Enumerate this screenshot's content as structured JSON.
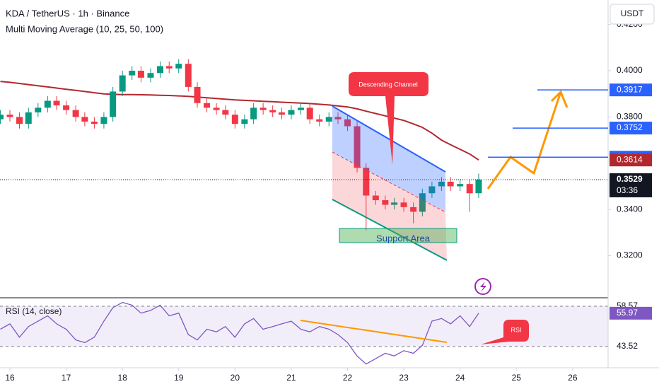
{
  "chart_data": {
    "type": "candlestick",
    "title": "KDA / TetherUS · 1h · Binance",
    "subtitle": "Multi Moving Average (10, 25, 50, 100)",
    "currency": "USDT",
    "x": [
      15.83,
      16.0,
      16.17,
      16.33,
      16.5,
      16.67,
      16.83,
      17.0,
      17.17,
      17.33,
      17.5,
      17.67,
      17.83,
      18.0,
      18.17,
      18.33,
      18.5,
      18.67,
      18.83,
      19.0,
      19.17,
      19.33,
      19.5,
      19.67,
      19.83,
      20.0,
      20.17,
      20.33,
      20.5,
      20.67,
      20.83,
      21.0,
      21.17,
      21.33,
      21.5,
      21.67,
      21.83,
      22.0,
      22.17,
      22.33,
      22.5,
      22.67,
      22.83,
      23.0,
      23.17,
      23.33,
      23.5,
      23.67,
      23.83,
      24.0,
      24.17,
      24.33
    ],
    "open": [
      0.379,
      0.381,
      0.38,
      0.377,
      0.382,
      0.384,
      0.387,
      0.385,
      0.383,
      0.38,
      0.378,
      0.377,
      0.38,
      0.391,
      0.398,
      0.4,
      0.397,
      0.399,
      0.402,
      0.401,
      0.403,
      0.393,
      0.386,
      0.384,
      0.383,
      0.381,
      0.377,
      0.379,
      0.384,
      0.383,
      0.382,
      0.381,
      0.383,
      0.384,
      0.379,
      0.378,
      0.38,
      0.379,
      0.376,
      0.358,
      0.346,
      0.344,
      0.342,
      0.343,
      0.341,
      0.339,
      0.347,
      0.35,
      0.352,
      0.35,
      0.351,
      0.347
    ],
    "high": [
      0.383,
      0.383,
      0.382,
      0.384,
      0.386,
      0.389,
      0.389,
      0.387,
      0.385,
      0.382,
      0.38,
      0.382,
      0.393,
      0.4,
      0.402,
      0.402,
      0.401,
      0.404,
      0.404,
      0.405,
      0.405,
      0.395,
      0.388,
      0.386,
      0.385,
      0.383,
      0.381,
      0.386,
      0.386,
      0.385,
      0.384,
      0.385,
      0.386,
      0.386,
      0.381,
      0.382,
      0.382,
      0.381,
      0.378,
      0.36,
      0.348,
      0.346,
      0.345,
      0.345,
      0.343,
      0.349,
      0.352,
      0.354,
      0.354,
      0.353,
      0.353,
      0.3555
    ],
    "low": [
      0.377,
      0.378,
      0.375,
      0.375,
      0.38,
      0.382,
      0.383,
      0.381,
      0.378,
      0.376,
      0.375,
      0.375,
      0.378,
      0.389,
      0.396,
      0.395,
      0.395,
      0.397,
      0.399,
      0.399,
      0.391,
      0.384,
      0.382,
      0.381,
      0.379,
      0.375,
      0.375,
      0.377,
      0.381,
      0.38,
      0.379,
      0.379,
      0.381,
      0.377,
      0.376,
      0.376,
      0.377,
      0.374,
      0.356,
      0.331,
      0.342,
      0.34,
      0.34,
      0.339,
      0.334,
      0.337,
      0.345,
      0.348,
      0.348,
      0.348,
      0.339,
      0.345
    ],
    "close": [
      0.381,
      0.38,
      0.377,
      0.382,
      0.384,
      0.387,
      0.385,
      0.383,
      0.38,
      0.378,
      0.377,
      0.38,
      0.391,
      0.398,
      0.4,
      0.397,
      0.399,
      0.402,
      0.401,
      0.403,
      0.393,
      0.386,
      0.384,
      0.383,
      0.381,
      0.377,
      0.379,
      0.384,
      0.383,
      0.382,
      0.381,
      0.383,
      0.384,
      0.379,
      0.378,
      0.38,
      0.379,
      0.376,
      0.358,
      0.346,
      0.344,
      0.342,
      0.343,
      0.341,
      0.339,
      0.347,
      0.35,
      0.352,
      0.35,
      0.351,
      0.347,
      0.3529
    ],
    "up_color": "#089981",
    "down_color": "#f23645",
    "moving_average": {
      "color": "#b2282e",
      "values": [
        0.3954,
        0.395,
        0.3945,
        0.394,
        0.3935,
        0.393,
        0.3925,
        0.392,
        0.3915,
        0.391,
        0.3905,
        0.39,
        0.3898,
        0.3897,
        0.3897,
        0.3896,
        0.3895,
        0.3894,
        0.3893,
        0.3891,
        0.3889,
        0.3886,
        0.3883,
        0.388,
        0.3877,
        0.3874,
        0.3872,
        0.387,
        0.3868,
        0.3866,
        0.3864,
        0.3862,
        0.386,
        0.3858,
        0.3855,
        0.3852,
        0.3848,
        0.3843,
        0.3835,
        0.3825,
        0.3815,
        0.3805,
        0.3795,
        0.3785,
        0.377,
        0.3755,
        0.373,
        0.37,
        0.368,
        0.366,
        0.364,
        0.3614
      ]
    },
    "countdown": "03:36",
    "levels": [
      0.3917,
      0.3752,
      0.3626
    ],
    "level_color": "#2962ff",
    "xlim": [
      15.824,
      26.63
    ],
    "xticks": [
      16,
      17,
      18,
      19,
      20,
      21,
      22,
      23,
      24,
      25,
      26
    ],
    "ylim": [
      0.3021,
      0.4306
    ],
    "yticks": [
      {
        "value": 0.42,
        "label": "0.4200"
      },
      {
        "value": 0.4,
        "label": "0.4000"
      },
      {
        "value": 0.38,
        "label": "0.3800"
      },
      {
        "value": 0.34,
        "label": "0.3400"
      },
      {
        "value": 0.32,
        "label": "0.3200"
      }
    ],
    "annotations": [
      "Descending Channel",
      "Support Area",
      "RSI"
    ],
    "rsi": {
      "label": "RSI (14, close)",
      "color": "#7e57c2",
      "ylim": [
        35.6,
        61.47
      ],
      "yticks": [
        58.57,
        43.52
      ],
      "values": [
        50,
        52,
        47,
        51,
        53,
        55,
        52,
        50,
        46,
        45,
        47,
        53,
        58,
        60,
        59,
        56,
        57,
        59,
        55,
        56,
        48,
        46,
        50,
        49,
        51,
        47,
        52,
        54,
        50,
        51,
        52,
        53,
        50,
        49,
        51,
        50,
        48,
        45,
        40,
        37,
        39,
        41,
        40,
        42,
        41,
        44,
        53,
        54,
        52,
        55,
        51,
        55.97
      ]
    }
  }
}
